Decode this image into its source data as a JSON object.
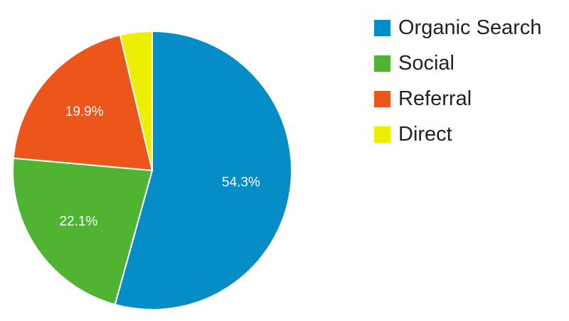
{
  "chart_data": {
    "type": "pie",
    "title": "",
    "legend_position": "right",
    "start_angle_deg": 0,
    "direction": "clockwise",
    "slices": [
      {
        "name": "Organic Search",
        "value": 54.3,
        "label": "54.3%",
        "color": "#058dc7"
      },
      {
        "name": "Social",
        "value": 22.1,
        "label": "22.1%",
        "color": "#50b432"
      },
      {
        "name": "Referral",
        "value": 19.9,
        "label": "19.9%",
        "color": "#ed561b"
      },
      {
        "name": "Direct",
        "value": 3.7,
        "label": "",
        "color": "#edef00"
      }
    ]
  }
}
